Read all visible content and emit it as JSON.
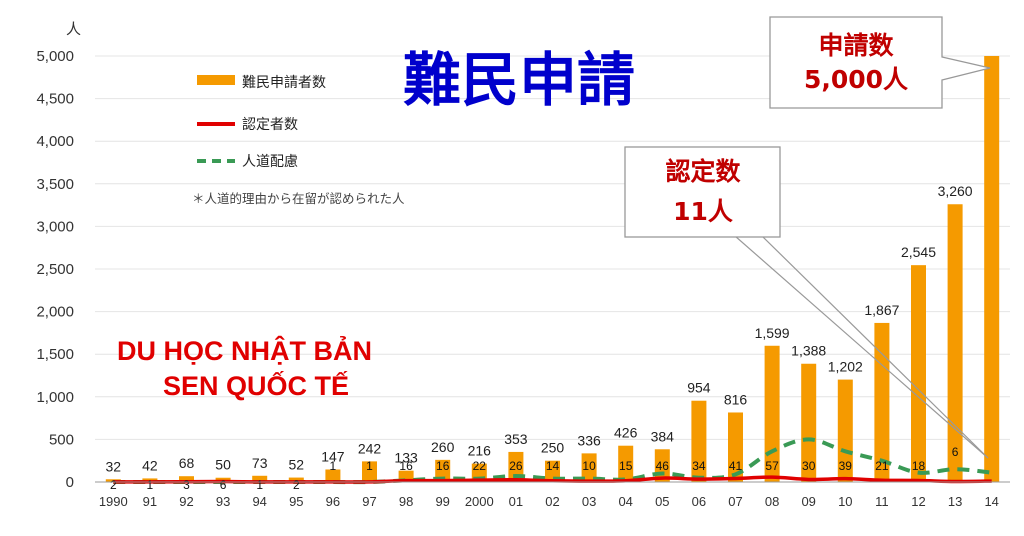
{
  "title": "難民申請",
  "watermark": {
    "line1": "DU HỌC NHẬT BẢN",
    "line2": "SEN QUỐC TẾ"
  },
  "note": "＊人道的理由から在留が認められた人",
  "callouts": {
    "applications": {
      "label": "申請数",
      "value": "5,000人"
    },
    "recognized": {
      "label": "認定数",
      "value": "11人"
    }
  },
  "colors": {
    "applications": "#F59A00",
    "recognized": "#E00000",
    "humanitarian": "#3A9A55",
    "title": "#0000CC",
    "watermark": "#E00000"
  },
  "chart_data": {
    "type": "bar",
    "ylabel": "人",
    "ylim": [
      0,
      5000
    ],
    "yticks": [
      "0",
      "500",
      "1,000",
      "1,500",
      "2,000",
      "2,500",
      "3,000",
      "3,500",
      "4,000",
      "4,500",
      "5,000"
    ],
    "categories": [
      "1990",
      "91",
      "92",
      "93",
      "94",
      "95",
      "96",
      "97",
      "98",
      "99",
      "2000",
      "01",
      "02",
      "03",
      "04",
      "05",
      "06",
      "07",
      "08",
      "09",
      "10",
      "11",
      "12",
      "13",
      "14"
    ],
    "series": [
      {
        "name": "難民申請者数",
        "kind": "bar",
        "values": [
          32,
          42,
          68,
          50,
          73,
          52,
          147,
          242,
          133,
          260,
          216,
          353,
          250,
          336,
          426,
          384,
          954,
          816,
          1599,
          1388,
          1202,
          1867,
          2545,
          3260,
          5000
        ],
        "labels": [
          "32",
          "42",
          "68",
          "50",
          "73",
          "52",
          "147",
          "242",
          "133",
          "260",
          "216",
          "353",
          "250",
          "336",
          "426",
          "384",
          "954",
          "816",
          "1,599",
          "1,388",
          "1,202",
          "1,867",
          "2,545",
          "3,260",
          ""
        ]
      },
      {
        "name": "認定者数",
        "kind": "line",
        "values": [
          2,
          1,
          3,
          6,
          1,
          2,
          1,
          1,
          16,
          16,
          22,
          26,
          14,
          10,
          15,
          46,
          34,
          41,
          57,
          30,
          39,
          21,
          18,
          6,
          11
        ],
        "labels": [
          "2",
          "1",
          "3",
          "6",
          "1",
          "2",
          "1",
          "1",
          "16",
          "16",
          "22",
          "26",
          "14",
          "10",
          "15",
          "46",
          "34",
          "41",
          "57",
          "30",
          "39",
          "21",
          "18",
          "6",
          ""
        ]
      },
      {
        "name": "人道配慮",
        "kind": "dashed-line",
        "values": [
          0,
          0,
          0,
          0,
          0,
          0,
          0,
          0,
          20,
          40,
          40,
          70,
          40,
          40,
          30,
          100,
          50,
          90,
          360,
          500,
          360,
          250,
          110,
          150,
          110
        ]
      }
    ]
  }
}
